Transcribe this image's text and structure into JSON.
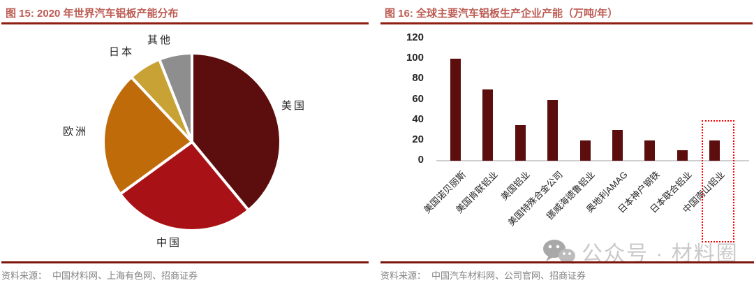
{
  "left_panel": {
    "title": "图 15: 2020 年世界汽车铝板产能分布",
    "source_label": "资料来源：",
    "sources": "中国材料网、上海有色网、招商证券"
  },
  "right_panel": {
    "title": "图 16: 全球主要汽车铝板生产企业产能（万吨/年）",
    "source_label": "资料来源：",
    "sources": "中国汽车材料网、公司官网、招商证券"
  },
  "watermark": {
    "icon": "wechat-icon",
    "text": "公众号 · 材料圈"
  },
  "colors": {
    "title_text": "#bc5b52",
    "title_underline": "#8e1f12",
    "footer_line": "#7c150d",
    "source_text": "#828282",
    "axis_text": "#262626",
    "axis_line": "#cfcfcf",
    "bar": "#5c0d0d",
    "highlight_box": "#fe0000",
    "watermark": "#c9c9c9"
  },
  "chart_data": [
    {
      "type": "pie",
      "title": "2020 年世界汽车铝板产能分布",
      "labels": [
        "美国",
        "中国",
        "欧洲",
        "日本",
        "其他"
      ],
      "values": [
        39,
        26,
        23,
        6,
        6
      ],
      "colors": [
        "#5c0d0d",
        "#a81216",
        "#bf6b0a",
        "#c8a235",
        "#8e8e8e"
      ],
      "start_angle_deg": 0,
      "direction": "clockwise",
      "legend_position": "labels-around-pie"
    },
    {
      "type": "bar",
      "title": "全球主要汽车铝板生产企业产能（万吨/年）",
      "categories": [
        "美国诺贝丽斯",
        "美国肯联铝业",
        "美国铝业",
        "美国特殊合金公司",
        "挪威海德鲁铝业",
        "奥地利AMAG",
        "日本神户钢铁",
        "日本联合铝业",
        "中国南山铝业"
      ],
      "values": [
        100,
        70,
        35,
        60,
        20,
        30,
        20,
        10,
        20
      ],
      "ylim": [
        0,
        120
      ],
      "ytick_step": 20,
      "grid": false,
      "highlight": {
        "category": "中国南山铝业",
        "style": "red dotted rectangle"
      }
    }
  ]
}
